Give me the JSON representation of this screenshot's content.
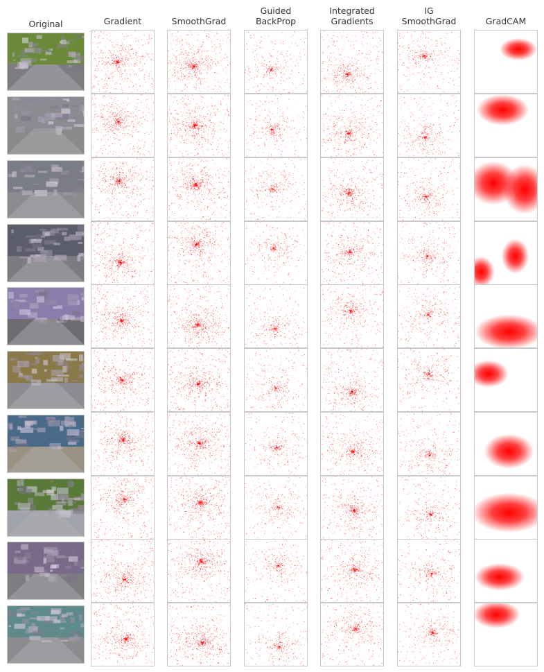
{
  "columns": [
    {
      "id": "original",
      "title": "Original"
    },
    {
      "id": "gradient",
      "title": "Gradient"
    },
    {
      "id": "smoothgrad",
      "title": "SmoothGrad"
    },
    {
      "id": "guided-backprop",
      "title": "Guided\nBackProp"
    },
    {
      "id": "integrated-gradients",
      "title": "Integrated\nGradients"
    },
    {
      "id": "ig-smoothgrad",
      "title": "IG\nSmoothGrad"
    },
    {
      "id": "gradcam",
      "title": "GradCAM"
    }
  ],
  "rows": [
    {
      "scene": "street-with-lamp",
      "sky": "#6a8a3a",
      "ground": "#7e7c80",
      "gradcam": [
        [
          0.7,
          0.3,
          0.3,
          0.18
        ]
      ]
    },
    {
      "scene": "building-with-car",
      "sky": "#8a8c92",
      "ground": "#8a8a8a",
      "gradcam": [
        [
          0.45,
          0.25,
          0.42,
          0.25
        ]
      ]
    },
    {
      "scene": "building-corner",
      "sky": "#7a7d86",
      "ground": "#8c8c90",
      "gradcam": [
        [
          0.3,
          0.4,
          0.4,
          0.35
        ],
        [
          0.8,
          0.5,
          0.35,
          0.4
        ]
      ]
    },
    {
      "scene": "urban-crossing",
      "sky": "#5b5e6a",
      "ground": "#7e7a82",
      "gradcam": [
        [
          0.1,
          0.8,
          0.22,
          0.25
        ],
        [
          0.65,
          0.55,
          0.22,
          0.28
        ]
      ]
    },
    {
      "scene": "park-fence",
      "sky": "#8a7cab",
      "ground": "#6d6c72",
      "gradcam": [
        [
          0.55,
          0.75,
          0.55,
          0.28
        ]
      ]
    },
    {
      "scene": "overpass",
      "sky": "#8a7a4a",
      "ground": "#8d8c92",
      "gradcam": [
        [
          0.22,
          0.4,
          0.32,
          0.22
        ]
      ]
    },
    {
      "scene": "open-plaza",
      "sky": "#4a6a8a",
      "ground": "#9a9282",
      "gradcam": [
        [
          0.55,
          0.62,
          0.4,
          0.28
        ]
      ]
    },
    {
      "scene": "waterfront",
      "sky": "#5a7a3a",
      "ground": "#a0a4aa",
      "gradcam": [
        [
          0.55,
          0.58,
          0.6,
          0.32
        ]
      ]
    },
    {
      "scene": "street-with-car",
      "sky": "#7a6a8a",
      "ground": "#7e7d82",
      "gradcam": [
        [
          0.4,
          0.6,
          0.4,
          0.22
        ]
      ]
    },
    {
      "scene": "parked-van",
      "sky": "#5f8a8a",
      "ground": "#8c8c90",
      "gradcam": [
        [
          0.35,
          0.18,
          0.38,
          0.22
        ]
      ]
    }
  ]
}
